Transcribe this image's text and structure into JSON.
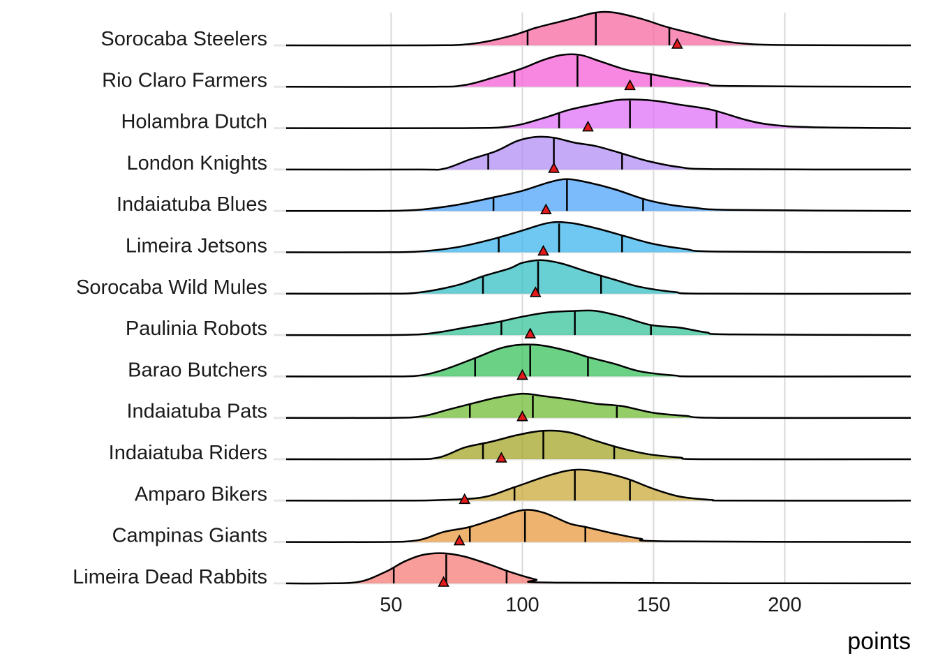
{
  "chart_data": {
    "type": "ridgeline",
    "xlabel": "points",
    "xlim": [
      10,
      248
    ],
    "xticks": [
      50,
      100,
      150,
      200
    ],
    "grid": true,
    "marker_shape": "triangle",
    "marker_color": "#e31a1c",
    "series": [
      {
        "name": "Sorocaba Steelers",
        "color": "#f768a1",
        "q25": 102,
        "median": 128,
        "q75": 156,
        "marker": 159,
        "density": [
          [
            60,
            0.0
          ],
          [
            80,
            0.04
          ],
          [
            95,
            0.27
          ],
          [
            105,
            0.52
          ],
          [
            115,
            0.72
          ],
          [
            120,
            0.82
          ],
          [
            128,
            0.98
          ],
          [
            135,
            0.98
          ],
          [
            145,
            0.8
          ],
          [
            155,
            0.55
          ],
          [
            165,
            0.35
          ],
          [
            175,
            0.15
          ],
          [
            185,
            0.05
          ],
          [
            200,
            0.01
          ],
          [
            248,
            0.0
          ]
        ]
      },
      {
        "name": "Rio Claro Farmers",
        "color": "#f45fd6",
        "q25": 97,
        "median": 121,
        "q75": 149,
        "marker": 141,
        "density": [
          [
            65,
            0.0
          ],
          [
            78,
            0.05
          ],
          [
            90,
            0.3
          ],
          [
            100,
            0.55
          ],
          [
            108,
            0.8
          ],
          [
            115,
            0.95
          ],
          [
            122,
            0.95
          ],
          [
            130,
            0.75
          ],
          [
            140,
            0.5
          ],
          [
            150,
            0.36
          ],
          [
            160,
            0.22
          ],
          [
            170,
            0.09
          ],
          [
            180,
            0.02
          ],
          [
            248,
            0.0
          ]
        ]
      },
      {
        "name": "Holambra Dutch",
        "color": "#df72f6",
        "q25": 114,
        "median": 141,
        "q75": 174,
        "marker": 125,
        "density": [
          [
            75,
            0.0
          ],
          [
            95,
            0.05
          ],
          [
            108,
            0.3
          ],
          [
            118,
            0.55
          ],
          [
            130,
            0.75
          ],
          [
            138,
            0.85
          ],
          [
            150,
            0.82
          ],
          [
            160,
            0.7
          ],
          [
            172,
            0.55
          ],
          [
            185,
            0.25
          ],
          [
            195,
            0.1
          ],
          [
            210,
            0.03
          ],
          [
            248,
            0.0
          ]
        ]
      },
      {
        "name": "London Knights",
        "color": "#b18ef5",
        "q25": 87,
        "median": 112,
        "q75": 138,
        "marker": 112,
        "density": [
          [
            60,
            0.0
          ],
          [
            70,
            0.02
          ],
          [
            80,
            0.3
          ],
          [
            90,
            0.55
          ],
          [
            98,
            0.85
          ],
          [
            105,
            0.97
          ],
          [
            112,
            0.95
          ],
          [
            120,
            0.8
          ],
          [
            128,
            0.7
          ],
          [
            138,
            0.48
          ],
          [
            148,
            0.25
          ],
          [
            160,
            0.07
          ],
          [
            175,
            0.01
          ],
          [
            248,
            0.0
          ]
        ]
      },
      {
        "name": "Indaiatuba Blues",
        "color": "#4fa3fa",
        "q25": 89,
        "median": 117,
        "q75": 146,
        "marker": 109,
        "density": [
          [
            45,
            0.0
          ],
          [
            60,
            0.03
          ],
          [
            75,
            0.18
          ],
          [
            90,
            0.42
          ],
          [
            100,
            0.6
          ],
          [
            110,
            0.85
          ],
          [
            117,
            0.95
          ],
          [
            125,
            0.85
          ],
          [
            135,
            0.65
          ],
          [
            146,
            0.36
          ],
          [
            155,
            0.2
          ],
          [
            165,
            0.1
          ],
          [
            180,
            0.03
          ],
          [
            248,
            0.0
          ]
        ]
      },
      {
        "name": "Limeira Jetsons",
        "color": "#3db6ec",
        "q25": 91,
        "median": 114,
        "q75": 138,
        "marker": 108,
        "density": [
          [
            45,
            0.0
          ],
          [
            60,
            0.02
          ],
          [
            75,
            0.15
          ],
          [
            88,
            0.38
          ],
          [
            100,
            0.65
          ],
          [
            110,
            0.88
          ],
          [
            118,
            0.88
          ],
          [
            128,
            0.72
          ],
          [
            140,
            0.46
          ],
          [
            150,
            0.25
          ],
          [
            162,
            0.1
          ],
          [
            175,
            0.02
          ],
          [
            248,
            0.0
          ]
        ]
      },
      {
        "name": "Sorocaba Wild Mules",
        "color": "#36bfc4",
        "q25": 85,
        "median": 106,
        "q75": 130,
        "marker": 105,
        "density": [
          [
            45,
            0.0
          ],
          [
            60,
            0.03
          ],
          [
            75,
            0.25
          ],
          [
            85,
            0.52
          ],
          [
            95,
            0.75
          ],
          [
            100,
            0.92
          ],
          [
            107,
            1.0
          ],
          [
            115,
            0.9
          ],
          [
            125,
            0.65
          ],
          [
            135,
            0.42
          ],
          [
            145,
            0.2
          ],
          [
            158,
            0.05
          ],
          [
            170,
            0.0
          ],
          [
            248,
            0.0
          ]
        ]
      },
      {
        "name": "Paulinia Robots",
        "color": "#38c49b",
        "q25": 92,
        "median": 120,
        "q75": 149,
        "marker": 103,
        "density": [
          [
            50,
            0.0
          ],
          [
            65,
            0.05
          ],
          [
            78,
            0.22
          ],
          [
            90,
            0.38
          ],
          [
            100,
            0.55
          ],
          [
            110,
            0.68
          ],
          [
            120,
            0.72
          ],
          [
            128,
            0.72
          ],
          [
            138,
            0.55
          ],
          [
            149,
            0.3
          ],
          [
            160,
            0.22
          ],
          [
            170,
            0.08
          ],
          [
            180,
            0.02
          ],
          [
            248,
            0.0
          ]
        ]
      },
      {
        "name": "Barao Butchers",
        "color": "#39c15c",
        "q25": 82,
        "median": 103,
        "q75": 125,
        "marker": 100,
        "density": [
          [
            45,
            0.0
          ],
          [
            60,
            0.02
          ],
          [
            70,
            0.2
          ],
          [
            82,
            0.55
          ],
          [
            92,
            0.85
          ],
          [
            100,
            0.95
          ],
          [
            108,
            0.92
          ],
          [
            118,
            0.75
          ],
          [
            125,
            0.58
          ],
          [
            135,
            0.38
          ],
          [
            145,
            0.15
          ],
          [
            158,
            0.03
          ],
          [
            170,
            0.0
          ],
          [
            248,
            0.0
          ]
        ]
      },
      {
        "name": "Indaiatuba Pats",
        "color": "#72bd35",
        "q25": 80,
        "median": 104,
        "q75": 136,
        "marker": 100,
        "density": [
          [
            50,
            0.0
          ],
          [
            62,
            0.05
          ],
          [
            72,
            0.25
          ],
          [
            82,
            0.45
          ],
          [
            90,
            0.6
          ],
          [
            100,
            0.72
          ],
          [
            108,
            0.65
          ],
          [
            118,
            0.55
          ],
          [
            128,
            0.42
          ],
          [
            138,
            0.35
          ],
          [
            150,
            0.15
          ],
          [
            162,
            0.06
          ],
          [
            175,
            0.0
          ],
          [
            248,
            0.0
          ]
        ]
      },
      {
        "name": "Indaiatuba Riders",
        "color": "#a3a528",
        "q25": 85,
        "median": 108,
        "q75": 135,
        "marker": 92,
        "density": [
          [
            55,
            0.0
          ],
          [
            68,
            0.05
          ],
          [
            78,
            0.35
          ],
          [
            88,
            0.52
          ],
          [
            98,
            0.72
          ],
          [
            108,
            0.85
          ],
          [
            118,
            0.8
          ],
          [
            128,
            0.55
          ],
          [
            138,
            0.32
          ],
          [
            148,
            0.15
          ],
          [
            160,
            0.05
          ],
          [
            170,
            0.0
          ],
          [
            248,
            0.0
          ]
        ]
      },
      {
        "name": "Amparo Bikers",
        "color": "#c9a93a",
        "q25": 97,
        "median": 120,
        "q75": 141,
        "marker": 78,
        "density": [
          [
            55,
            0.0
          ],
          [
            70,
            0.02
          ],
          [
            85,
            0.1
          ],
          [
            97,
            0.4
          ],
          [
            110,
            0.75
          ],
          [
            120,
            0.92
          ],
          [
            130,
            0.85
          ],
          [
            140,
            0.65
          ],
          [
            150,
            0.35
          ],
          [
            160,
            0.12
          ],
          [
            172,
            0.02
          ],
          [
            180,
            0.0
          ],
          [
            248,
            0.0
          ]
        ]
      },
      {
        "name": "Campinas Giants",
        "color": "#e99a40",
        "q25": 80,
        "median": 101,
        "q75": 124,
        "marker": 76,
        "density": [
          [
            45,
            0.0
          ],
          [
            60,
            0.05
          ],
          [
            70,
            0.3
          ],
          [
            80,
            0.45
          ],
          [
            90,
            0.7
          ],
          [
            100,
            0.95
          ],
          [
            108,
            0.88
          ],
          [
            118,
            0.55
          ],
          [
            124,
            0.45
          ],
          [
            135,
            0.25
          ],
          [
            145,
            0.1
          ],
          [
            155,
            0.02
          ],
          [
            248,
            0.0
          ]
        ]
      },
      {
        "name": "Limeira Dead Rabbits",
        "color": "#f67c78",
        "q25": 51,
        "median": 71,
        "q75": 94,
        "marker": 70,
        "density": [
          [
            25,
            0.0
          ],
          [
            38,
            0.05
          ],
          [
            48,
            0.35
          ],
          [
            55,
            0.65
          ],
          [
            62,
            0.85
          ],
          [
            70,
            0.9
          ],
          [
            78,
            0.8
          ],
          [
            88,
            0.55
          ],
          [
            95,
            0.35
          ],
          [
            105,
            0.12
          ],
          [
            115,
            0.02
          ],
          [
            248,
            0.0
          ]
        ]
      }
    ]
  }
}
